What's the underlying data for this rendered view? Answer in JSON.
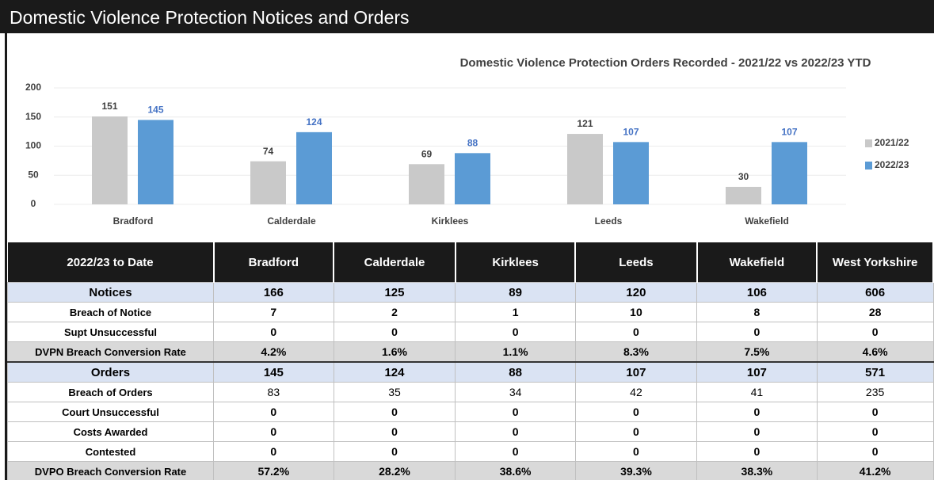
{
  "title": "Domestic Violence Protection Notices and Orders",
  "chart_data": {
    "type": "bar",
    "title": "Domestic Violence Protection Orders Recorded - 2021/22  vs 2022/23 YTD",
    "categories": [
      "Bradford",
      "Calderdale",
      "Kirklees",
      "Leeds",
      "Wakefield"
    ],
    "series": [
      {
        "name": "2021/22",
        "color": "#c9c9c9",
        "label_color": "#404040",
        "values": [
          151,
          74,
          69,
          121,
          30
        ]
      },
      {
        "name": "2022/23",
        "color": "#5b9bd5",
        "label_color": "#4472c4",
        "values": [
          145,
          124,
          88,
          107,
          107
        ]
      }
    ],
    "ylim": [
      0,
      200
    ],
    "yticks": [
      0,
      50,
      100,
      150,
      200
    ],
    "grid": true,
    "legend": "right"
  },
  "table": {
    "columns": [
      "2022/23 to Date",
      "Bradford",
      "Calderdale",
      "Kirklees",
      "Leeds",
      "Wakefield",
      "West Yorkshire"
    ],
    "rows": [
      [
        "Notices",
        "166",
        "125",
        "89",
        "120",
        "106",
        "606"
      ],
      [
        "Breach of Notice",
        "7",
        "2",
        "1",
        "10",
        "8",
        "28"
      ],
      [
        "Supt Unsuccessful",
        "0",
        "0",
        "0",
        "0",
        "0",
        "0"
      ],
      [
        "DVPN Breach Conversion Rate",
        "4.2%",
        "1.6%",
        "1.1%",
        "8.3%",
        "7.5%",
        "4.6%"
      ],
      [
        "Orders",
        "145",
        "124",
        "88",
        "107",
        "107",
        "571"
      ],
      [
        "Breach of Orders",
        "83",
        "35",
        "34",
        "42",
        "41",
        "235"
      ],
      [
        "Court Unsuccessful",
        "0",
        "0",
        "0",
        "0",
        "0",
        "0"
      ],
      [
        "Costs Awarded",
        "0",
        "0",
        "0",
        "0",
        "0",
        "0"
      ],
      [
        "Contested",
        "0",
        "0",
        "0",
        "0",
        "0",
        "0"
      ],
      [
        "DVPO Breach Conversion Rate",
        "57.2%",
        "28.2%",
        "38.6%",
        "39.3%",
        "38.3%",
        "41.2%"
      ]
    ]
  }
}
